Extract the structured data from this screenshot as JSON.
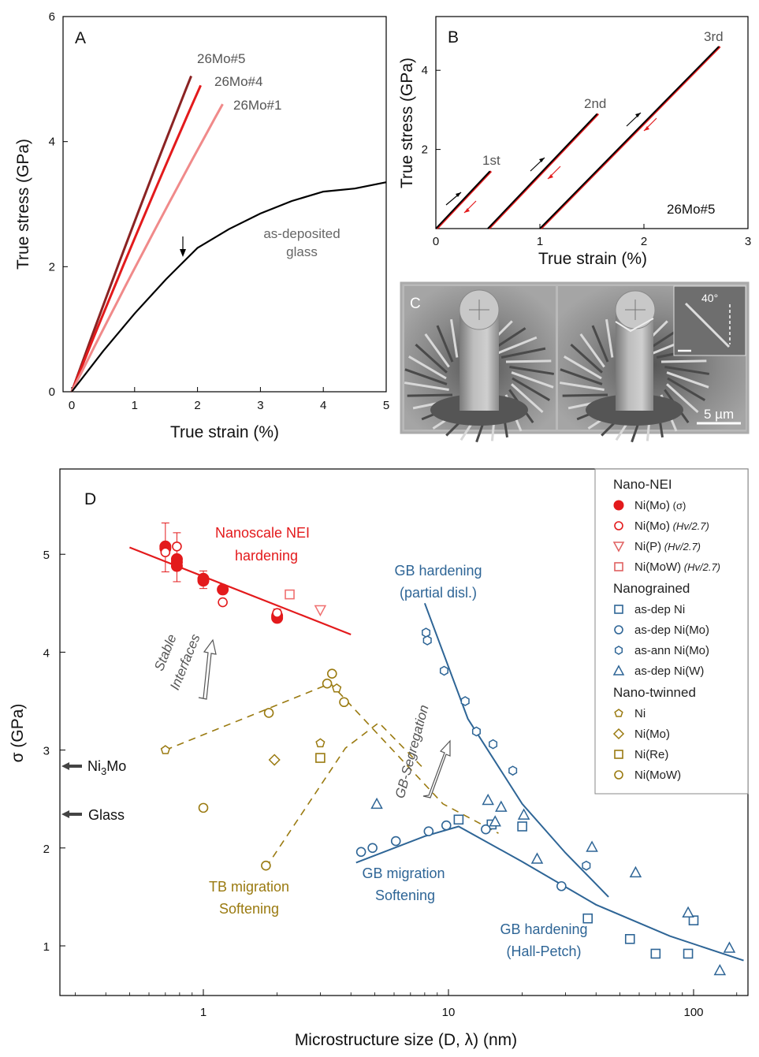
{
  "colors": {
    "red": "#e31a1c",
    "darkred": "#8b2323",
    "pink": "#f08a8a",
    "black": "#000000",
    "gray": "#666666",
    "blue": "#2e6596",
    "olive": "#9a7a10",
    "lightred": "#f07070"
  },
  "panelA": {
    "label": "A",
    "xlabel": "True strain (%)",
    "ylabel": "True stress (GPa)",
    "xticks": [
      "0",
      "1",
      "2",
      "3",
      "4",
      "5"
    ],
    "yticks": [
      "0",
      "2",
      "4",
      "6"
    ],
    "curve_labels": {
      "mo5": "26Mo#5",
      "mo4": "26Mo#4",
      "mo1": "26Mo#1",
      "glass": "as-deposited glass"
    },
    "glass_label_lines": [
      "as-deposited",
      "glass"
    ]
  },
  "panelB": {
    "label": "B",
    "xlabel": "True strain (%)",
    "ylabel": "True stress (GPa)",
    "xticks": [
      "0",
      "1",
      "2",
      "3"
    ],
    "yticks": [
      "2",
      "4"
    ],
    "cycle_labels": [
      "1st",
      "2nd",
      "3rd"
    ],
    "sample": "26Mo#5"
  },
  "panelC": {
    "label": "C",
    "angle": "40°",
    "scalebar": "5 µm",
    "image_note": "two SEM micropillar images"
  },
  "panelD": {
    "label": "D",
    "xlabel": "Microstructure size (D, λ) (nm)",
    "ylabel": "σ (GPa)",
    "xticks": [
      "1",
      "10",
      "100"
    ],
    "yticks": [
      "1",
      "2",
      "3",
      "4",
      "5"
    ],
    "arrows": [
      {
        "label": "Ni3Mo",
        "value": 2.84
      },
      {
        "label": "Glass",
        "value": 2.35
      }
    ],
    "annotations": {
      "nei": [
        "Nanoscale NEI",
        "hardening"
      ],
      "stable": [
        "Stable",
        "Interfaces"
      ],
      "gbpartial": [
        "GB hardening",
        "(partial disl.)"
      ],
      "gbseg": "GB-Segregation",
      "tbmig": [
        "TB migration",
        "Softening"
      ],
      "gbmig": [
        "GB migration",
        "Softening"
      ],
      "gbhp": [
        "GB hardening",
        "(Hall-Petch)"
      ]
    },
    "legend": {
      "groups": [
        {
          "title": "Nano-NEI",
          "items": [
            {
              "label": "Ni(Mo)",
              "suffix": "(σ)",
              "marker": "filled-circle",
              "color": "#e31a1c"
            },
            {
              "label": "Ni(Mo)",
              "suffix": "(Hv/2.7)",
              "marker": "circle",
              "color": "#e31a1c"
            },
            {
              "label": "Ni(P)",
              "suffix": "(Hv/2.7)",
              "marker": "triangle-down",
              "color": "#e06060"
            },
            {
              "label": "Ni(MoW)",
              "suffix": "(Hv/2.7)",
              "marker": "square",
              "color": "#e06060"
            }
          ]
        },
        {
          "title": "Nanograined",
          "items": [
            {
              "label": "as-dep Ni",
              "marker": "square",
              "color": "#2e6596"
            },
            {
              "label": "as-dep Ni(Mo)",
              "marker": "circle",
              "color": "#2e6596"
            },
            {
              "label": "as-ann Ni(Mo)",
              "marker": "hexagon",
              "color": "#2e6596"
            },
            {
              "label": "as-dep Ni(W)",
              "marker": "triangle",
              "color": "#2e6596"
            }
          ]
        },
        {
          "title": "Nano-twinned",
          "items": [
            {
              "label": "Ni",
              "marker": "pentagon",
              "color": "#9a7a10"
            },
            {
              "label": "Ni(Mo)",
              "marker": "diamond",
              "color": "#9a7a10"
            },
            {
              "label": "Ni(Re)",
              "marker": "square",
              "color": "#9a7a10"
            },
            {
              "label": "Ni(MoW)",
              "marker": "circle",
              "color": "#9a7a10"
            }
          ]
        }
      ]
    }
  },
  "chart_data": [
    {
      "type": "line",
      "panel": "A",
      "xlabel": "True strain (%)",
      "ylabel": "True stress (GPa)",
      "xlim": [
        0,
        5
      ],
      "ylim": [
        0,
        6
      ],
      "series": [
        {
          "name": "26Mo#5",
          "x": [
            0,
            1.9
          ],
          "y": [
            0,
            5.05
          ]
        },
        {
          "name": "26Mo#4",
          "x": [
            0,
            2.05
          ],
          "y": [
            0,
            4.9
          ]
        },
        {
          "name": "26Mo#1",
          "x": [
            0,
            2.4
          ],
          "y": [
            0,
            4.6
          ]
        },
        {
          "name": "as-deposited glass",
          "x": [
            0,
            0.5,
            1.0,
            1.5,
            1.75,
            2.0,
            2.5,
            3.0,
            3.5,
            4.0,
            4.5,
            5.0
          ],
          "y": [
            0,
            0.65,
            1.25,
            1.8,
            2.05,
            2.3,
            2.6,
            2.85,
            3.05,
            3.2,
            3.25,
            3.35
          ]
        }
      ]
    },
    {
      "type": "line",
      "panel": "B",
      "xlabel": "True strain (%)",
      "ylabel": "True stress (GPa)",
      "xlim": [
        0,
        3
      ],
      "ylim": [
        0,
        5
      ],
      "series": [
        {
          "name": "1st",
          "x": [
            0,
            0.52
          ],
          "y": [
            0,
            1.45
          ]
        },
        {
          "name": "2nd",
          "x": [
            0.5,
            1.55
          ],
          "y": [
            0,
            2.9
          ]
        },
        {
          "name": "3rd",
          "x": [
            1.0,
            2.72
          ],
          "y": [
            0,
            4.6
          ]
        }
      ]
    },
    {
      "type": "scatter",
      "panel": "D",
      "xscale": "log",
      "xlabel": "Microstructure size (D, λ) (nm)",
      "ylabel": "σ (GPa)",
      "xlim": [
        0.3,
        160
      ],
      "ylim": [
        0.4,
        5.9
      ],
      "series": [
        {
          "name": "Ni(Mo) (σ)",
          "x": [
            0.7,
            0.7,
            0.78,
            0.78,
            0.78,
            1.0,
            1.0,
            1.2,
            2.0,
            2.0
          ],
          "y": [
            5.08,
            5.06,
            4.95,
            4.88,
            4.92,
            4.73,
            4.75,
            4.64,
            4.37,
            4.35
          ]
        },
        {
          "name": "Ni(Mo) (Hv/2.7)",
          "x": [
            0.7,
            0.78,
            1.2,
            2.0
          ],
          "y": [
            5.02,
            5.08,
            4.51,
            4.4
          ]
        },
        {
          "name": "Ni(P) (Hv/2.7)",
          "x": [
            3.0
          ],
          "y": [
            4.43
          ]
        },
        {
          "name": "Ni(MoW) (Hv/2.7)",
          "x": [
            2.25
          ],
          "y": [
            4.59
          ]
        },
        {
          "name": "as-dep Ni",
          "x": [
            11,
            15,
            20,
            37,
            55,
            70,
            95,
            100
          ],
          "y": [
            2.29,
            2.24,
            2.22,
            1.28,
            1.07,
            0.92,
            0.92,
            1.26
          ]
        },
        {
          "name": "as-dep Ni(Mo)",
          "x": [
            4.4,
            4.9,
            6.1,
            8.3,
            9.8,
            14.2,
            28.9
          ],
          "y": [
            1.96,
            2.0,
            2.07,
            2.17,
            2.23,
            2.19,
            1.61
          ]
        },
        {
          "name": "as-ann Ni(Mo)",
          "x": [
            8.1,
            8.2,
            9.6,
            11.7,
            13.0,
            15.2,
            18.3,
            36.5
          ],
          "y": [
            4.2,
            4.12,
            3.81,
            3.5,
            3.19,
            3.06,
            2.79,
            1.82
          ]
        },
        {
          "name": "as-dep Ni(W)",
          "x": [
            5.1,
            14.5,
            15.5,
            16.4,
            20.3,
            23.0,
            38.5,
            58.0,
            95.0,
            128.0,
            140.0
          ],
          "y": [
            2.45,
            2.49,
            2.27,
            2.42,
            2.34,
            1.89,
            2.01,
            1.75,
            1.34,
            0.75,
            0.98
          ]
        },
        {
          "name": "Ni (twinned)",
          "x": [
            0.7,
            3.0,
            3.5
          ],
          "y": [
            3.0,
            3.07,
            3.63
          ]
        },
        {
          "name": "Ni(Mo) (twinned)",
          "x": [
            1.95
          ],
          "y": [
            2.9
          ]
        },
        {
          "name": "Ni(Re)",
          "x": [
            3.0
          ],
          "y": [
            2.92
          ]
        },
        {
          "name": "Ni(MoW)",
          "x": [
            1.0,
            1.85,
            1.8,
            3.2,
            3.35,
            3.75
          ],
          "y": [
            2.41,
            3.38,
            1.82,
            3.68,
            3.78,
            3.49
          ]
        }
      ],
      "fits": [
        {
          "name": "NEI fit",
          "x": [
            0.5,
            4.0
          ],
          "y": [
            5.07,
            4.18
          ]
        },
        {
          "name": "GB partial fit",
          "x": [
            8.0,
            12,
            20,
            30,
            45
          ],
          "y": [
            4.5,
            3.32,
            2.45,
            1.95,
            1.5
          ]
        },
        {
          "name": "GB migration + Hall-Petch",
          "x": [
            4.2,
            8,
            11,
            20,
            40,
            80,
            160
          ],
          "y": [
            1.85,
            2.12,
            2.22,
            1.86,
            1.42,
            1.1,
            0.85
          ]
        },
        {
          "name": "TB nanotwin upper",
          "x": [
            0.7,
            3.3,
            9.5,
            16
          ],
          "y": [
            3.0,
            3.68,
            2.45,
            2.15
          ]
        },
        {
          "name": "TB nanotwin lower",
          "x": [
            1.8,
            3.8,
            5.2,
            8
          ],
          "y": [
            1.8,
            3.02,
            3.28,
            2.8
          ]
        }
      ]
    }
  ]
}
